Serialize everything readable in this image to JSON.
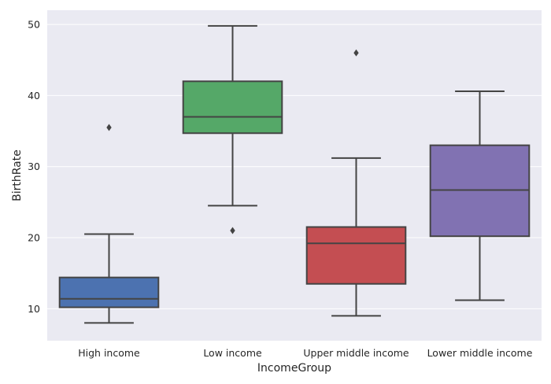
{
  "chart_data": {
    "type": "box",
    "title": "",
    "xlabel": "IncomeGroup",
    "ylabel": "BirthRate",
    "ylim": [
      5.5,
      52
    ],
    "yticks": [
      10,
      20,
      30,
      40,
      50
    ],
    "grid": true,
    "categories": [
      "High income",
      "Low income",
      "Upper middle income",
      "Lower middle income"
    ],
    "boxes": [
      {
        "category": "High income",
        "whisker_low": 8,
        "q1": 10.2,
        "median": 11.4,
        "q3": 14.4,
        "whisker_high": 20.5,
        "outliers": [
          35.5
        ],
        "color": "#4c72b0"
      },
      {
        "category": "Low income",
        "whisker_low": 24.5,
        "q1": 34.7,
        "median": 37,
        "q3": 42,
        "whisker_high": 49.8,
        "outliers": [
          21
        ],
        "color": "#55a868"
      },
      {
        "category": "Upper middle income",
        "whisker_low": 9,
        "q1": 13.5,
        "median": 19.2,
        "q3": 21.5,
        "whisker_high": 31.2,
        "outliers": [
          46
        ],
        "color": "#c44e52"
      },
      {
        "category": "Lower middle income",
        "whisker_low": 11.2,
        "q1": 20.2,
        "median": 26.7,
        "q3": 33,
        "whisker_high": 40.6,
        "outliers": [],
        "color": "#8172b2"
      }
    ]
  }
}
